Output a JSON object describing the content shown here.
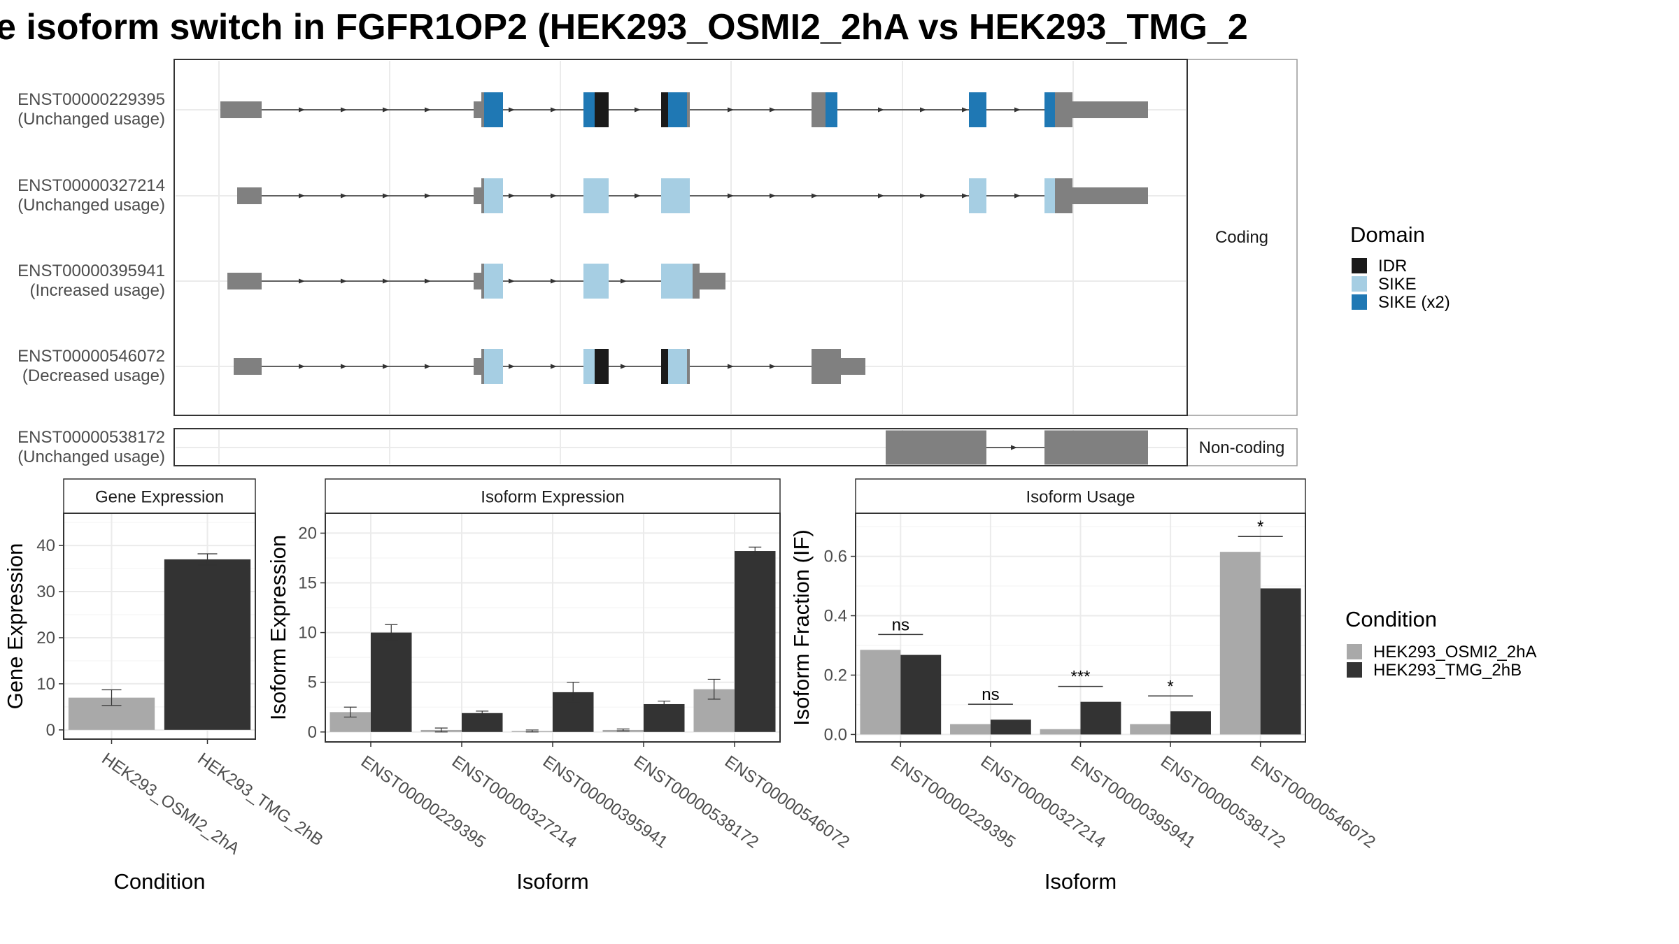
{
  "title": "e isoform switch in FGFR1OP2 (HEK293_OSMI2_2hA vs HEK293_TMG_2",
  "structure": {
    "coding_strip_label": "Coding",
    "noncoding_strip_label": "Non-coding",
    "legend_title": "Domain",
    "legend_items": [
      {
        "label": "IDR",
        "color": "#1a1a1a"
      },
      {
        "label": "SIKE",
        "color": "#a6cee3"
      },
      {
        "label": "SIKE (x2)",
        "color": "#1f78b4"
      }
    ],
    "transcripts": [
      {
        "id": "ENST00000229395",
        "usage": "(Unchanged usage)",
        "group": "coding"
      },
      {
        "id": "ENST00000327214",
        "usage": "(Unchanged usage)",
        "group": "coding"
      },
      {
        "id": "ENST00000395941",
        "usage": "(Increased usage)",
        "group": "coding"
      },
      {
        "id": "ENST00000546072",
        "usage": "(Decreased usage)",
        "group": "coding"
      },
      {
        "id": "ENST00000538172",
        "usage": "(Unchanged usage)",
        "group": "noncoding"
      }
    ]
  },
  "condition_legend": {
    "title": "Condition",
    "items": [
      {
        "label": "HEK293_OSMI2_2hA",
        "color": "#a9a9a9"
      },
      {
        "label": "HEK293_TMG_2hB",
        "color": "#333333"
      }
    ]
  },
  "chart_data": [
    {
      "type": "bar",
      "title": "Gene Expression",
      "xlabel": "Condition",
      "ylabel": "Gene Expression",
      "categories": [
        "HEK293_OSMI2_2hA",
        "HEK293_TMG_2hB"
      ],
      "values": [
        7.0,
        37.0
      ],
      "errors": [
        1.7,
        1.2
      ],
      "ylim": [
        -2,
        47
      ],
      "yticks": [
        0,
        10,
        20,
        30,
        40
      ]
    },
    {
      "type": "bar",
      "title": "Isoform Expression",
      "xlabel": "Isoform",
      "ylabel": "Isoform Expression",
      "categories": [
        "ENST00000229395",
        "ENST00000327214",
        "ENST00000395941",
        "ENST00000538172",
        "ENST00000546072"
      ],
      "series": [
        {
          "name": "HEK293_OSMI2_2hA",
          "values": [
            2.0,
            0.2,
            0.1,
            0.2,
            4.3
          ],
          "errors": [
            0.5,
            0.2,
            0.1,
            0.1,
            1.0
          ]
        },
        {
          "name": "HEK293_TMG_2hB",
          "values": [
            10.0,
            1.9,
            4.0,
            2.8,
            18.2
          ],
          "errors": [
            0.8,
            0.2,
            1.0,
            0.3,
            0.4
          ]
        }
      ],
      "ylim": [
        -1,
        22
      ],
      "yticks": [
        0,
        5,
        10,
        15,
        20
      ]
    },
    {
      "type": "bar",
      "title": "Isoform Usage",
      "xlabel": "Isoform",
      "ylabel": "Isoform Fraction (IF)",
      "categories": [
        "ENST00000229395",
        "ENST00000327214",
        "ENST00000395941",
        "ENST00000538172",
        "ENST00000546072"
      ],
      "series": [
        {
          "name": "HEK293_OSMI2_2hA",
          "values": [
            0.285,
            0.035,
            0.018,
            0.035,
            0.615
          ]
        },
        {
          "name": "HEK293_TMG_2hB",
          "values": [
            0.268,
            0.05,
            0.11,
            0.078,
            0.492
          ]
        }
      ],
      "significance": [
        "ns",
        "ns",
        "***",
        "*",
        "*"
      ],
      "ylim": [
        -0.025,
        0.745
      ],
      "yticks": [
        0.0,
        0.2,
        0.4,
        0.6
      ],
      "ytick_labels": [
        "0.0",
        "0.2",
        "0.4",
        "0.6"
      ]
    }
  ]
}
